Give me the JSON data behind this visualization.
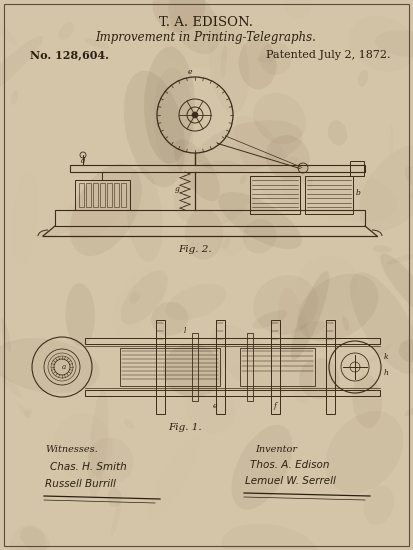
{
  "bg_color": "#d4c5a9",
  "title_line1": "T. A. EDISON.",
  "title_line2": "Improvement in Printing-Telegraphs.",
  "patent_no": "No. 128,604.",
  "patent_date": "Patented July 2, 1872.",
  "fig2_label": "Fig. 2.",
  "fig1_label": "Fig. 1.",
  "witnesses_label": "Witnesses.",
  "inventor_label": "Inventor",
  "witness1": "Chas. H. Smith",
  "witness2": "Russell Burrill",
  "inventor1": "Thos. A. Edison",
  "inventor2": "Lemuel W. Serrell",
  "ink_color": "#2a1f10",
  "line_color": "#3d2b1a",
  "stain_colors": [
    "#8b7355",
    "#7a6040",
    "#c4b090",
    "#6b5a3a",
    "#9a8060"
  ],
  "figsize": [
    4.13,
    5.5
  ],
  "dpi": 100
}
